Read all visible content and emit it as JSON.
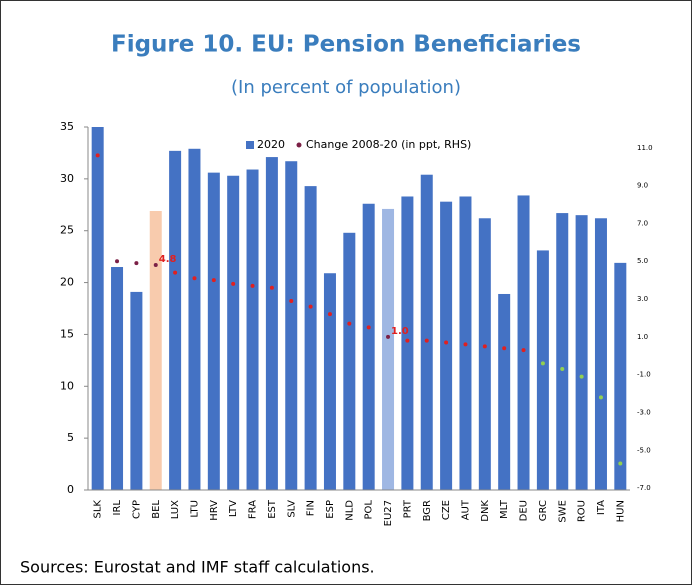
{
  "chart_data": {
    "type": "bar",
    "title": "Figure 10. EU: Pension Beneficiaries",
    "subtitle": "(In percent of population)",
    "source": "Sources: Eurostat and IMF staff calculations.",
    "categories": [
      "SLK",
      "IRL",
      "CYP",
      "BEL",
      "LUX",
      "LTU",
      "HRV",
      "LTV",
      "FRA",
      "EST",
      "SLV",
      "FIN",
      "ESP",
      "NLD",
      "POL",
      "EU27",
      "PRT",
      "BGR",
      "CZE",
      "AUT",
      "DNK",
      "MLT",
      "DEU",
      "GRC",
      "SWE",
      "ROU",
      "ITA",
      "HUN"
    ],
    "series": [
      {
        "name": "2020",
        "type": "bar",
        "color": "#4472c4",
        "colors": [
          "#4472c4",
          "#4472c4",
          "#4472c4",
          "#f8cbad",
          "#4472c4",
          "#4472c4",
          "#4472c4",
          "#4472c4",
          "#4472c4",
          "#4472c4",
          "#4472c4",
          "#4472c4",
          "#4472c4",
          "#4472c4",
          "#4472c4",
          "#9fb7e3",
          "#4472c4",
          "#4472c4",
          "#4472c4",
          "#4472c4",
          "#4472c4",
          "#4472c4",
          "#4472c4",
          "#4472c4",
          "#4472c4",
          "#4472c4",
          "#4472c4",
          "#4472c4"
        ],
        "values": [
          35,
          21.5,
          19.1,
          26.9,
          32.7,
          32.9,
          30.6,
          30.3,
          30.9,
          32.1,
          31.7,
          29.3,
          20.9,
          24.8,
          27.6,
          27.1,
          28.3,
          30.4,
          27.8,
          28.3,
          26.2,
          18.9,
          28.4,
          23.1,
          26.7,
          26.5,
          26.2,
          21.9
        ]
      },
      {
        "name": "Change 2008-20 (in ppt, RHS)",
        "type": "scatter",
        "axis": "y2",
        "color": "#7b2046",
        "colors": [
          "#e02020",
          "#7b2046",
          "#7b2046",
          "#7b2046",
          "#e02020",
          "#e02020",
          "#e02020",
          "#e02020",
          "#e02020",
          "#e02020",
          "#e02020",
          "#e02020",
          "#e02020",
          "#e02020",
          "#e02020",
          "#7b2046",
          "#e02020",
          "#e02020",
          "#e02020",
          "#e02020",
          "#e02020",
          "#e02020",
          "#e02020",
          "#92d050",
          "#92d050",
          "#92d050",
          "#92d050",
          "#92d050"
        ],
        "values": [
          10.6,
          5.0,
          4.9,
          4.8,
          4.4,
          4.1,
          4.0,
          3.8,
          3.7,
          3.6,
          2.9,
          2.6,
          2.2,
          1.7,
          1.5,
          1.0,
          0.8,
          0.8,
          0.7,
          0.6,
          0.5,
          0.4,
          0.3,
          -0.4,
          -0.7,
          -1.1,
          -2.2,
          -5.7
        ],
        "value_labels": [
          null,
          null,
          null,
          "4.8",
          null,
          null,
          null,
          null,
          null,
          null,
          null,
          null,
          null,
          null,
          null,
          "1.0",
          null,
          null,
          null,
          null,
          null,
          null,
          null,
          null,
          null,
          null,
          null,
          null
        ]
      }
    ],
    "ylim": [
      0,
      35
    ],
    "yticks": [
      0,
      5,
      10,
      15,
      20,
      25,
      30,
      35
    ],
    "y2lim": [
      -7.1,
      12.1
    ],
    "y2ticks": [
      {
        "value": 11,
        "label": "11.0"
      },
      {
        "value": 9,
        "label": "9.0"
      },
      {
        "value": 7,
        "label": "7.0"
      },
      {
        "value": 5,
        "label": "5.0"
      },
      {
        "value": 3,
        "label": "3.0"
      },
      {
        "value": 1,
        "label": "1.0"
      },
      {
        "value": -1,
        "label": "-1.0"
      },
      {
        "value": -3,
        "label": "-3.0"
      },
      {
        "value": -5,
        "label": "-5.0"
      },
      {
        "value": -7,
        "label": "-7.0"
      }
    ],
    "grid": false,
    "legend": "top"
  }
}
